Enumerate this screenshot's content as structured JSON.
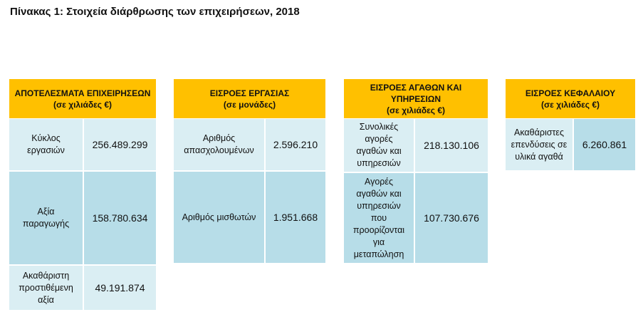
{
  "title": "Πίνακας 1: Στοιχεία διάρθρωσης των επιχειρήσεων, 2018",
  "tables": [
    {
      "title": "ΑΠΟΤΕΛΕΣΜΑΤΑ ΕΠΙΧΕΙΡΗΣΕΩΝ",
      "unit": "(σε χιλιάδες €)",
      "rows": [
        [
          "Κύκλος εργασιών",
          "256.489.299"
        ],
        [
          "Αξία παραγωγής",
          "158.780.634"
        ],
        [
          "Ακαθάριστη προστιθέμενη αξία",
          "49.191.874"
        ]
      ]
    },
    {
      "title": "ΕΙΣΡΟΕΣ ΕΡΓΑΣΙΑΣ",
      "unit": "(σε μονάδες)",
      "rows": [
        [
          "Αριθμός απασχολουμένων",
          "2.596.210"
        ],
        [
          "Αριθμός μισθωτών",
          "1.951.668"
        ]
      ]
    },
    {
      "title": "ΕΙΣΡΟΕΣ ΑΓΑΘΩΝ ΚΑΙ ΥΠΗΡΕΣΙΩΝ",
      "unit": "(σε χιλιάδες €)",
      "rows": [
        [
          "Συνολικές αγορές αγαθών και υπηρεσιών",
          "218.130.106"
        ],
        [
          "Αγορές αγαθών και υπηρεσιών που προορίζονται για μεταπώληση",
          "107.730.676"
        ]
      ]
    },
    {
      "title": "ΕΙΣΡΟΕΣ ΚΕΦΑΛΑΙΟΥ",
      "unit": "(σε χιλιάδες €)",
      "rows": [
        [
          "Ακαθάριστες επενδύσεις σε υλικά αγαθά",
          "6.260.861"
        ]
      ]
    }
  ]
}
